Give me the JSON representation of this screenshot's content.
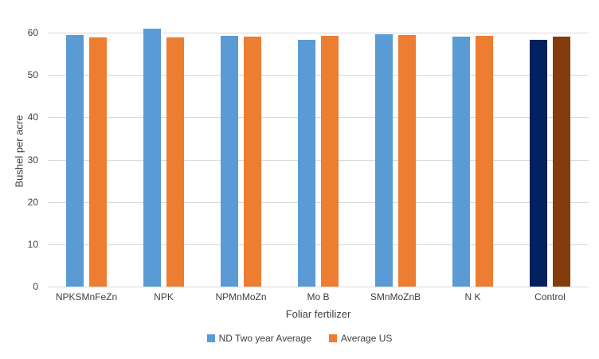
{
  "chart_data": {
    "type": "bar",
    "title": "",
    "xlabel": "Foliar fertilizer",
    "ylabel": "Bushel per acre",
    "ylim": [
      0,
      60
    ],
    "yticks": [
      0,
      10,
      20,
      30,
      40,
      50,
      60
    ],
    "grid": true,
    "legend_position": "bottom-center",
    "categories": [
      "NPKSMnFeZn",
      "NPK",
      "NPMnMoZn",
      "Mo B",
      "SMnMoZnB",
      "N K",
      "Control"
    ],
    "series": [
      {
        "name": "ND Two year Average",
        "color": "#5B9BD5",
        "values": [
          59.4,
          61.0,
          59.2,
          58.4,
          59.6,
          59.0,
          58.4
        ]
      },
      {
        "name": "Average US",
        "color": "#ED7D31",
        "values": [
          58.8,
          58.8,
          59.0,
          59.3,
          59.4,
          59.3,
          59.0
        ]
      }
    ],
    "point_color_overrides": {
      "Control": [
        "#002060",
        "#843C0C"
      ]
    },
    "colors": {
      "gridline": "#D9D9D9",
      "axis_line": "#D9D9D9",
      "text": "#404040"
    }
  }
}
